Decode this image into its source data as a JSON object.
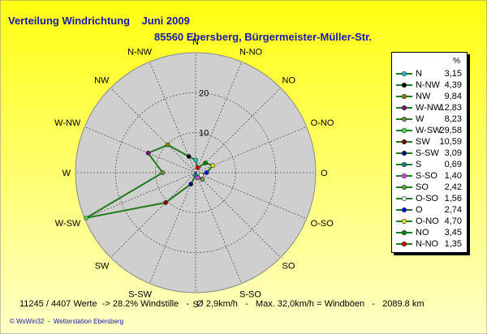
{
  "title": "Verteilung Windrichtung    Juni 2009",
  "subtitle": "85560 Ebersberg, Bürgermeister-Müller-Str.",
  "legend_unit": "%",
  "footer": "11245 / 4407 Werte  -> 28.2% Windstille   -   Ø 2,9km/h   -   Max. 32,0km/h = Windböen   -   2089.8 km",
  "credit": "© WsWin32  -  Wetterstation Ebersberg",
  "chart_data": {
    "type": "radar",
    "title": "Verteilung Windrichtung    Juni 2009",
    "subtitle": "85560 Ebersberg, Bürgermeister-Müller-Str.",
    "unit": "%",
    "rlim": [
      0,
      30
    ],
    "ring_labels": [
      10,
      20
    ],
    "grid": true,
    "legend_position": "right",
    "series_color": "#1e7a1e",
    "directions": [
      {
        "label": "N",
        "display": "N",
        "angle": 0,
        "value": 3.15,
        "color": "#20c0c0"
      },
      {
        "label": "N-NW",
        "display": "N-NW",
        "angle": 337.5,
        "value": 4.39,
        "color": "#000000"
      },
      {
        "label": "NW",
        "display": "NW",
        "angle": 315,
        "value": 9.84,
        "color": "#808000"
      },
      {
        "label": "W-NW",
        "display": "W-NW",
        "angle": 292.5,
        "value": 12.83,
        "color": "#800080"
      },
      {
        "label": "W",
        "display": "W",
        "angle": 270,
        "value": 8.23,
        "color": "#808040"
      },
      {
        "label": "W-SW",
        "display": "W-SW",
        "angle": 247.5,
        "value": 29.58,
        "color": "#40e040"
      },
      {
        "label": "SW",
        "display": "SW",
        "angle": 225,
        "value": 10.59,
        "color": "#800000"
      },
      {
        "label": "S-SW",
        "display": "S-SW",
        "angle": 202.5,
        "value": 3.09,
        "color": "#000080"
      },
      {
        "label": "S",
        "display": "S",
        "angle": 180,
        "value": 0.69,
        "color": "#008080"
      },
      {
        "label": "S-SO",
        "display": "S-SO",
        "angle": 157.5,
        "value": 1.4,
        "color": "#e040e0"
      },
      {
        "label": "SO",
        "display": "SO",
        "angle": 135,
        "value": 2.42,
        "color": "#60a040"
      },
      {
        "label": "O-SO",
        "display": "O-SO",
        "angle": 112.5,
        "value": 1.56,
        "color": "#e0f0e0"
      },
      {
        "label": "O",
        "display": "O",
        "angle": 90,
        "value": 2.74,
        "color": "#0000ff"
      },
      {
        "label": "O-NO",
        "display": "O-NO",
        "angle": 67.5,
        "value": 4.7,
        "color": "#e0e000"
      },
      {
        "label": "NO",
        "display": "NO",
        "angle": 45,
        "value": 3.45,
        "color": "#008000"
      },
      {
        "label": "N-NO",
        "display": "N-NO",
        "angle": 22.5,
        "value": 1.35,
        "color": "#e00000"
      }
    ],
    "legend_order": [
      "N",
      "N-NW",
      "NW",
      "W-NW",
      "W",
      "W-SW",
      "SW",
      "S-SW",
      "S",
      "S-SO",
      "SO",
      "O-SO",
      "O",
      "O-NO",
      "NO",
      "N-NO"
    ],
    "legend_values": [
      "3,15",
      "4,39",
      "9,84",
      "12,83",
      "8,23",
      "29,58",
      "10,59",
      "3,09",
      "0,69",
      "1,40",
      "2,42",
      "1,56",
      "2,74",
      "4,70",
      "3,45",
      "1,35"
    ]
  }
}
